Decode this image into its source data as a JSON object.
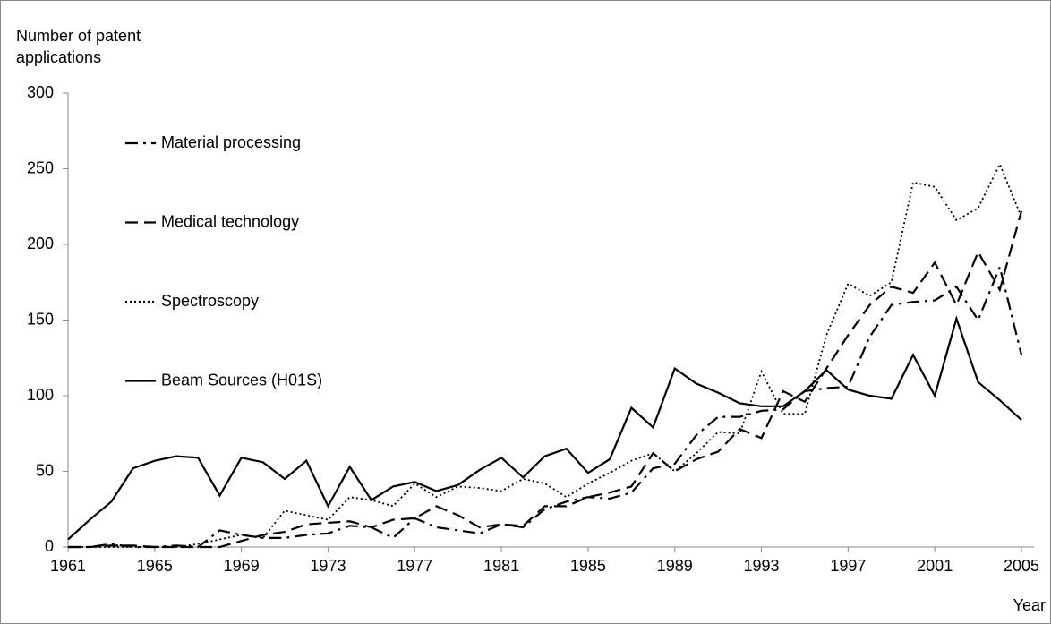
{
  "chart_data": {
    "type": "line",
    "y_label": "Number of patent applications",
    "x_label": "Year",
    "x": [
      1961,
      1962,
      1963,
      1964,
      1965,
      1966,
      1967,
      1968,
      1969,
      1970,
      1971,
      1972,
      1973,
      1974,
      1975,
      1976,
      1977,
      1978,
      1979,
      1980,
      1981,
      1982,
      1983,
      1984,
      1985,
      1986,
      1987,
      1988,
      1989,
      1990,
      1991,
      1992,
      1993,
      1994,
      1995,
      1996,
      1997,
      1998,
      1999,
      2000,
      2001,
      2002,
      2003,
      2004,
      2005
    ],
    "xlim": [
      1961,
      2005
    ],
    "xticks": [
      1961,
      1965,
      1969,
      1973,
      1977,
      1981,
      1985,
      1989,
      1993,
      1997,
      2001,
      2005
    ],
    "ylim": [
      0,
      300
    ],
    "yticks": [
      0,
      50,
      100,
      150,
      200,
      250,
      300
    ],
    "series": [
      {
        "name": "Material processing",
        "color": "#000000",
        "style": "dashdot",
        "values": [
          0,
          0,
          2,
          0,
          0,
          1,
          0,
          11,
          8,
          6,
          6,
          8,
          9,
          14,
          13,
          6,
          19,
          13,
          11,
          9,
          15,
          13,
          25,
          30,
          33,
          32,
          36,
          52,
          55,
          74,
          86,
          86,
          90,
          91,
          103,
          105,
          106,
          139,
          160,
          162,
          163,
          172,
          150,
          185,
          127
        ]
      },
      {
        "name": "Medical technology",
        "color": "#000000",
        "style": "dashed",
        "values": [
          0,
          0,
          1,
          1,
          0,
          0,
          0,
          0,
          4,
          8,
          10,
          15,
          16,
          17,
          13,
          18,
          19,
          27,
          21,
          13,
          15,
          14,
          27,
          27,
          33,
          36,
          40,
          62,
          50,
          58,
          63,
          78,
          72,
          103,
          96,
          118,
          140,
          160,
          172,
          168,
          188,
          160,
          195,
          170,
          222
        ]
      },
      {
        "name": "Spectroscopy",
        "color": "#000000",
        "style": "dotted",
        "values": [
          0,
          0,
          0,
          0,
          0,
          0,
          2,
          5,
          8,
          6,
          24,
          21,
          18,
          33,
          31,
          27,
          42,
          33,
          40,
          39,
          37,
          45,
          42,
          33,
          42,
          49,
          57,
          62,
          50,
          62,
          76,
          75,
          116,
          88,
          88,
          140,
          174,
          166,
          175,
          241,
          238,
          216,
          224,
          253,
          218
        ]
      },
      {
        "name": "Beam Sources (H01S)",
        "color": "#000000",
        "style": "solid",
        "values": [
          5,
          18,
          30,
          52,
          57,
          60,
          59,
          34,
          59,
          56,
          45,
          57,
          27,
          53,
          31,
          40,
          43,
          37,
          41,
          51,
          59,
          46,
          60,
          65,
          49,
          58,
          92,
          79,
          118,
          108,
          102,
          95,
          93,
          93,
          103,
          117,
          104,
          100,
          98,
          127,
          100,
          151,
          109,
          97,
          84
        ]
      }
    ]
  }
}
